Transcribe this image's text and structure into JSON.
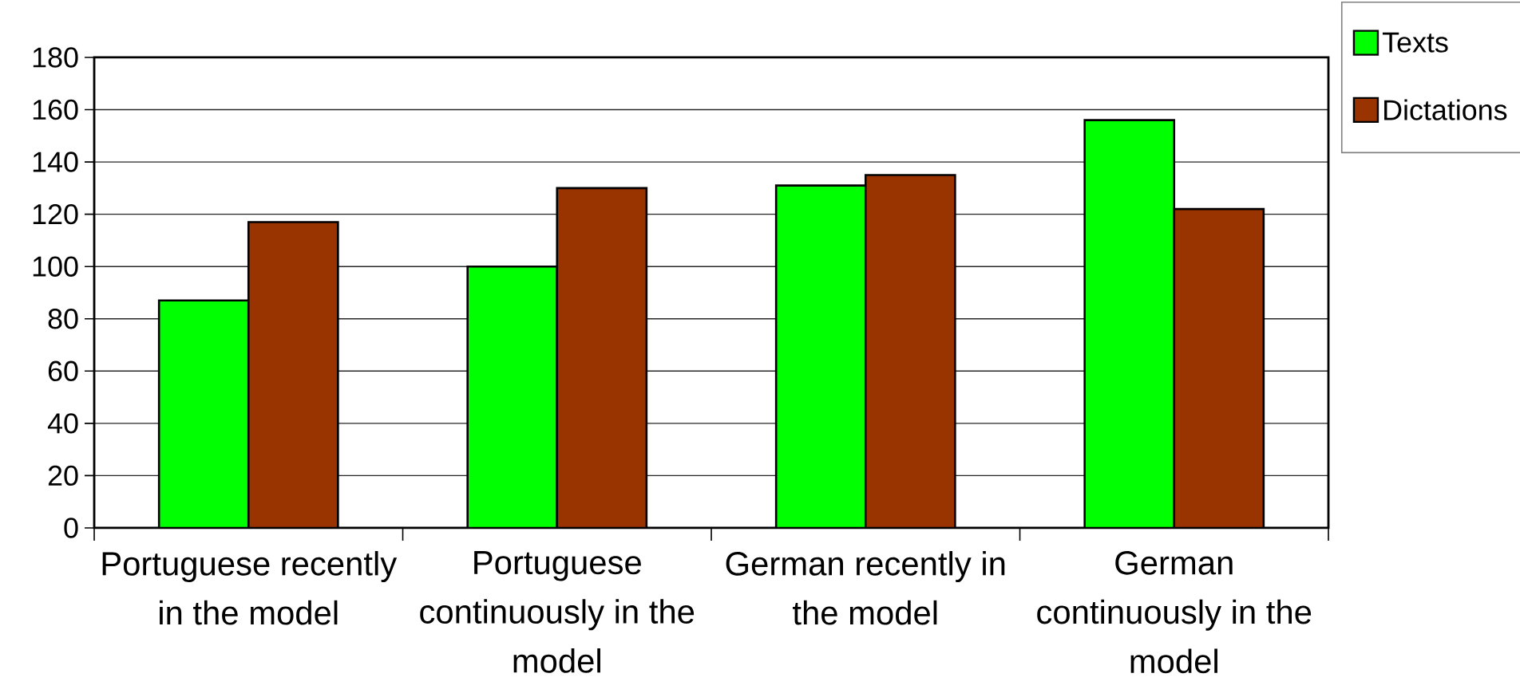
{
  "chart_data": {
    "type": "bar",
    "categories": [
      "Portuguese recently in the model",
      "Portuguese continuously in the model",
      "German recently in the model",
      "German continuously in the model"
    ],
    "series": [
      {
        "name": "Texts",
        "color": "#00ff00",
        "values": [
          87,
          100,
          131,
          156
        ]
      },
      {
        "name": "Dictations",
        "color": "#993300",
        "values": [
          117,
          130,
          135,
          122
        ]
      }
    ],
    "ylim": [
      0,
      180
    ],
    "yticks": [
      0,
      20,
      40,
      60,
      80,
      100,
      120,
      140,
      160,
      180
    ],
    "grid": "y",
    "legend": "top right"
  }
}
